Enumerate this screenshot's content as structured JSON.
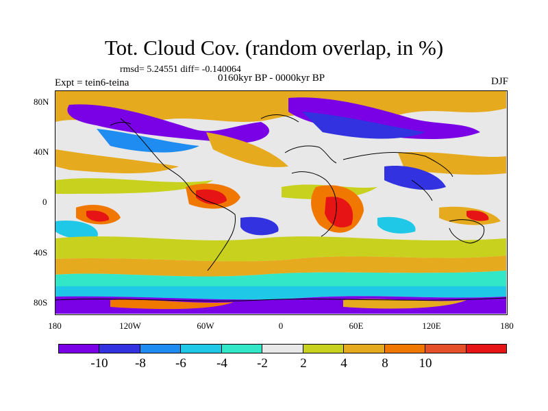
{
  "title": "Tot. Cloud Cov. (random overlap, in %)",
  "stats": "rmsd= 5.24551 diff= -0.140064",
  "expt": "Expt = tein6-teina",
  "period": "0160kyr BP - 0000kyr BP",
  "season": "DJF",
  "lat_labels": [
    "80N",
    "40N",
    "0",
    "40S",
    "80S"
  ],
  "lon_labels": [
    "180",
    "120W",
    "60W",
    "0",
    "60E",
    "120E",
    "180"
  ],
  "colorbar": {
    "colors": [
      "#7a00e6",
      "#3232e0",
      "#1e8cf0",
      "#1ec8e6",
      "#32e6c8",
      "#e8e8e8",
      "#c8d21e",
      "#e6aa1e",
      "#f07800",
      "#e65028",
      "#e61414"
    ],
    "labels": [
      "-10",
      "-8",
      "-6",
      "-4",
      "-2",
      "2",
      "4",
      "8",
      "10"
    ]
  }
}
